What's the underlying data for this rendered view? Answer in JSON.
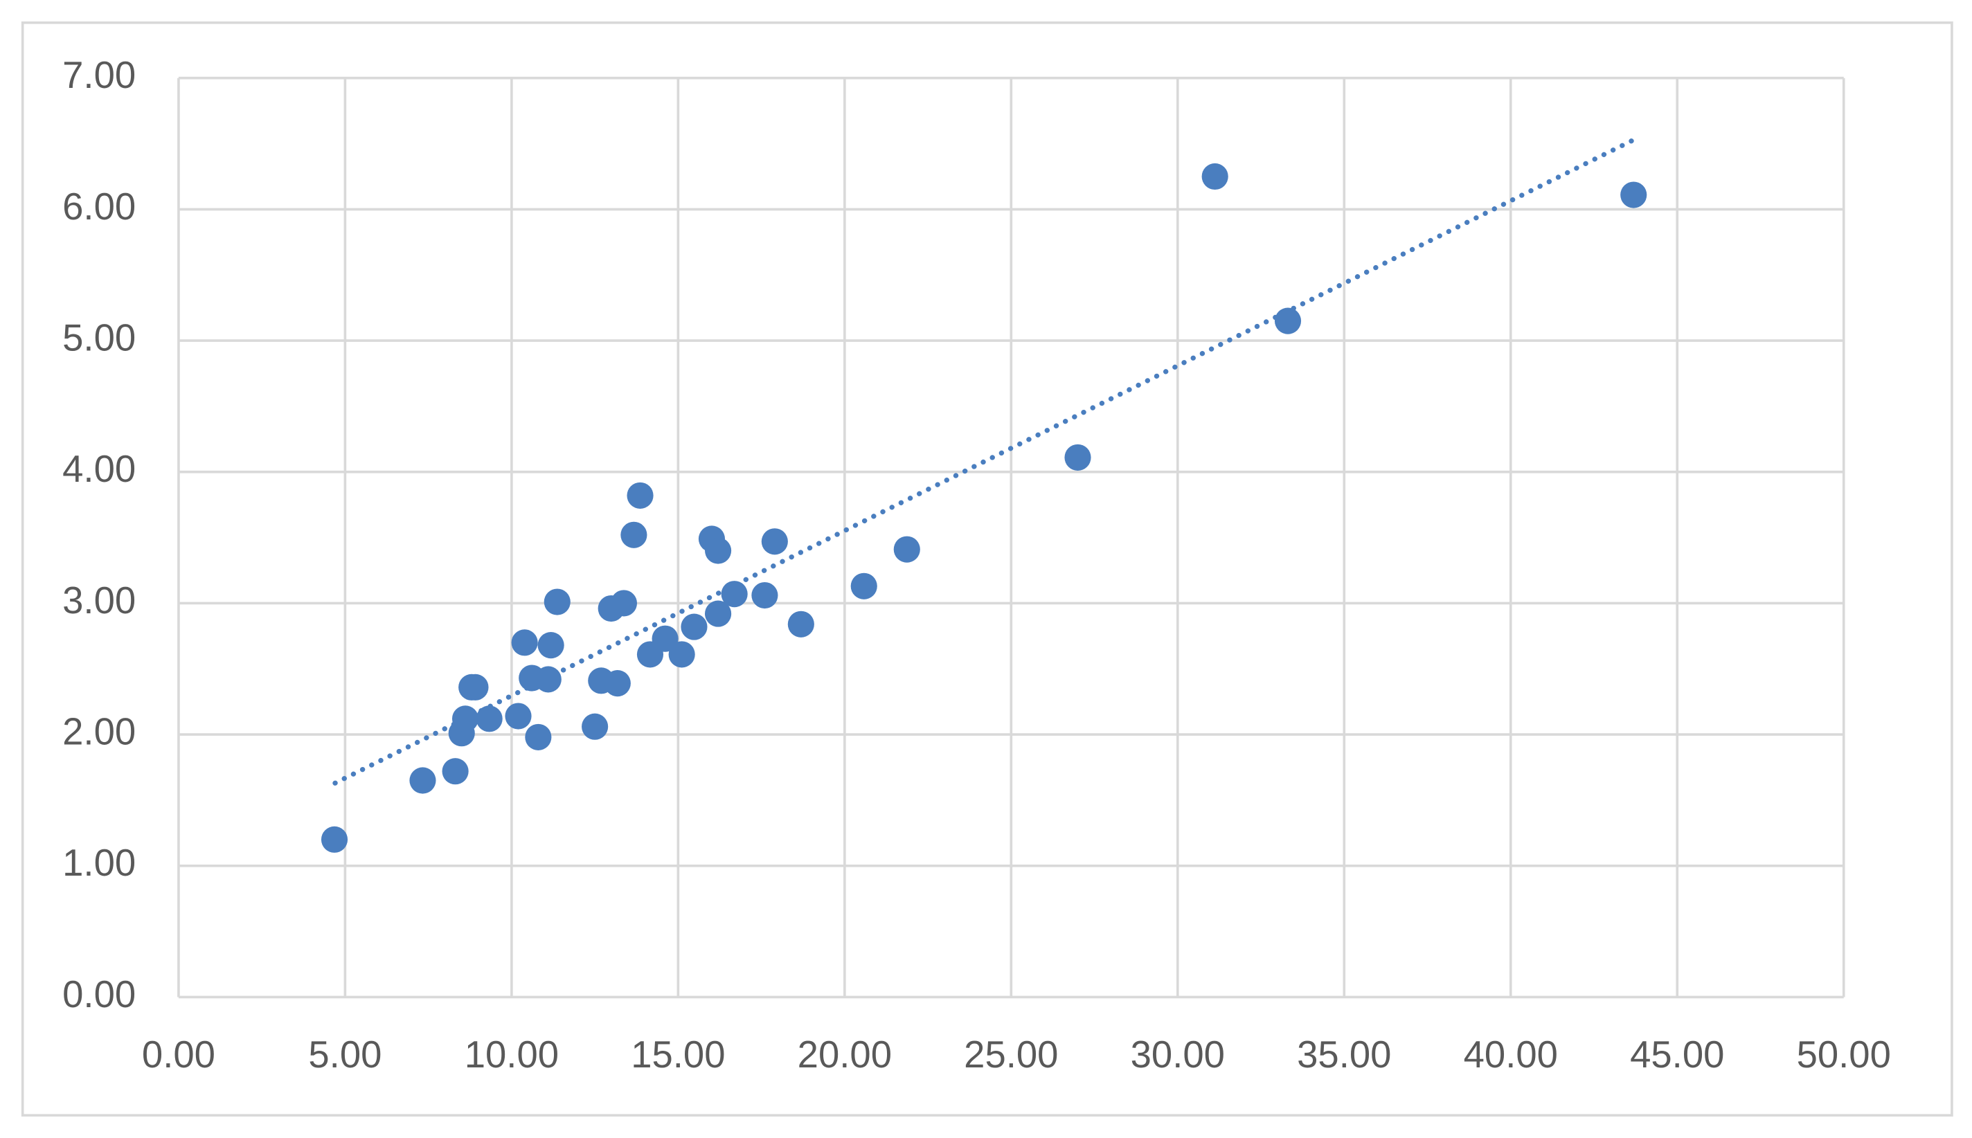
{
  "chart_data": {
    "type": "scatter",
    "x": [
      4.68,
      7.33,
      8.31,
      8.5,
      8.61,
      8.8,
      8.91,
      9.33,
      10.2,
      10.39,
      10.61,
      10.8,
      11.1,
      11.18,
      11.37,
      12.5,
      12.69,
      12.99,
      13.18,
      13.37,
      13.67,
      13.86,
      14.16,
      14.61,
      15.11,
      15.48,
      16.01,
      16.2,
      16.2,
      16.69,
      17.6,
      17.9,
      18.69,
      20.58,
      21.87,
      27.0,
      31.12,
      33.31,
      43.69
    ],
    "y": [
      1.2,
      1.65,
      1.72,
      2.01,
      2.12,
      2.36,
      2.36,
      2.12,
      2.14,
      2.7,
      2.43,
      1.98,
      2.42,
      2.68,
      3.01,
      2.06,
      2.41,
      2.96,
      2.39,
      3.0,
      3.52,
      3.82,
      2.61,
      2.73,
      2.61,
      2.82,
      3.49,
      3.4,
      2.92,
      3.07,
      3.06,
      3.47,
      2.84,
      3.13,
      3.41,
      4.11,
      6.25,
      5.15,
      6.11
    ],
    "color": "#4a7ebf",
    "trendline": {
      "x": [
        4.7,
        43.7
      ],
      "y": [
        1.63,
        6.53
      ],
      "style": "dotted"
    },
    "xlim": [
      0,
      50
    ],
    "xticks": [
      {
        "value": 0,
        "label": "0.00"
      },
      {
        "value": 5,
        "label": "5.00"
      },
      {
        "value": 10,
        "label": "10.00"
      },
      {
        "value": 15,
        "label": "15.00"
      },
      {
        "value": 20,
        "label": "20.00"
      },
      {
        "value": 25,
        "label": "25.00"
      },
      {
        "value": 30,
        "label": "30.00"
      },
      {
        "value": 35,
        "label": "35.00"
      },
      {
        "value": 40,
        "label": "40.00"
      },
      {
        "value": 45,
        "label": "45.00"
      },
      {
        "value": 50,
        "label": "50.00"
      }
    ],
    "ylim": [
      0,
      7
    ],
    "yticks": [
      {
        "value": 0,
        "label": "0.00"
      },
      {
        "value": 1,
        "label": "1.00"
      },
      {
        "value": 2,
        "label": "2.00"
      },
      {
        "value": 3,
        "label": "3.00"
      },
      {
        "value": 4,
        "label": "4.00"
      },
      {
        "value": 5,
        "label": "5.00"
      },
      {
        "value": 6,
        "label": "6.00"
      },
      {
        "value": 7,
        "label": "7.00"
      }
    ],
    "grid": true
  }
}
